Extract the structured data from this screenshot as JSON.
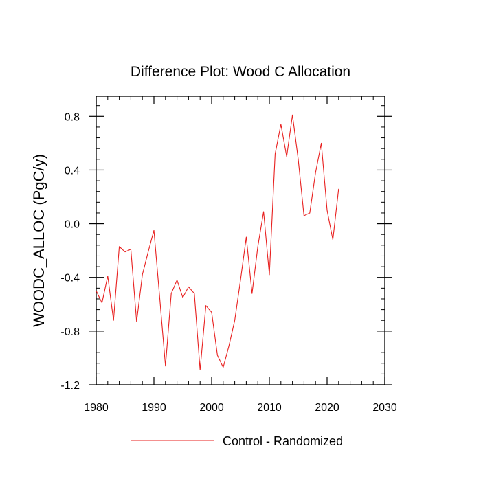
{
  "chart_data": {
    "type": "line",
    "title": "Difference Plot: Wood C Allocation",
    "ylabel": "WOODC_ALLOC  (PgC/y)",
    "xlabel": "",
    "xlim": [
      1980,
      2030
    ],
    "ylim": [
      -1.2,
      0.95
    ],
    "xticks": [
      1980,
      1990,
      2000,
      2010,
      2020,
      2030
    ],
    "xtick_labels": [
      "1980",
      "1990",
      "2000",
      "2010",
      "2020",
      "2030"
    ],
    "yticks": [
      -1.2,
      -0.8,
      -0.4,
      0.0,
      0.4,
      0.8
    ],
    "ytick_labels": [
      "-1.2",
      "-0.8",
      "-0.4",
      "0.0",
      "0.4",
      "0.8"
    ],
    "grid": false,
    "legend": "bottom-center",
    "series": [
      {
        "name": "Control - Randomized",
        "color": "#e8201f",
        "x": [
          1980,
          1981,
          1982,
          1983,
          1984,
          1985,
          1986,
          1987,
          1988,
          1989,
          1990,
          1991,
          1992,
          1993,
          1994,
          1995,
          1996,
          1997,
          1998,
          1999,
          2000,
          2001,
          2002,
          2003,
          2004,
          2005,
          2006,
          2007,
          2008,
          2009,
          2010,
          2011,
          2012,
          2013,
          2014,
          2015,
          2016,
          2017,
          2018,
          2019,
          2020,
          2021,
          2022
        ],
        "y": [
          -0.5,
          -0.59,
          -0.39,
          -0.72,
          -0.17,
          -0.21,
          -0.19,
          -0.73,
          -0.38,
          -0.21,
          -0.05,
          -0.55,
          -1.06,
          -0.52,
          -0.42,
          -0.55,
          -0.47,
          -0.52,
          -1.09,
          -0.61,
          -0.66,
          -0.98,
          -1.07,
          -0.91,
          -0.72,
          -0.42,
          -0.1,
          -0.52,
          -0.17,
          0.09,
          -0.38,
          0.52,
          0.74,
          0.5,
          0.81,
          0.48,
          0.06,
          0.08,
          0.38,
          0.6,
          0.1,
          -0.12,
          0.26
        ]
      }
    ]
  }
}
